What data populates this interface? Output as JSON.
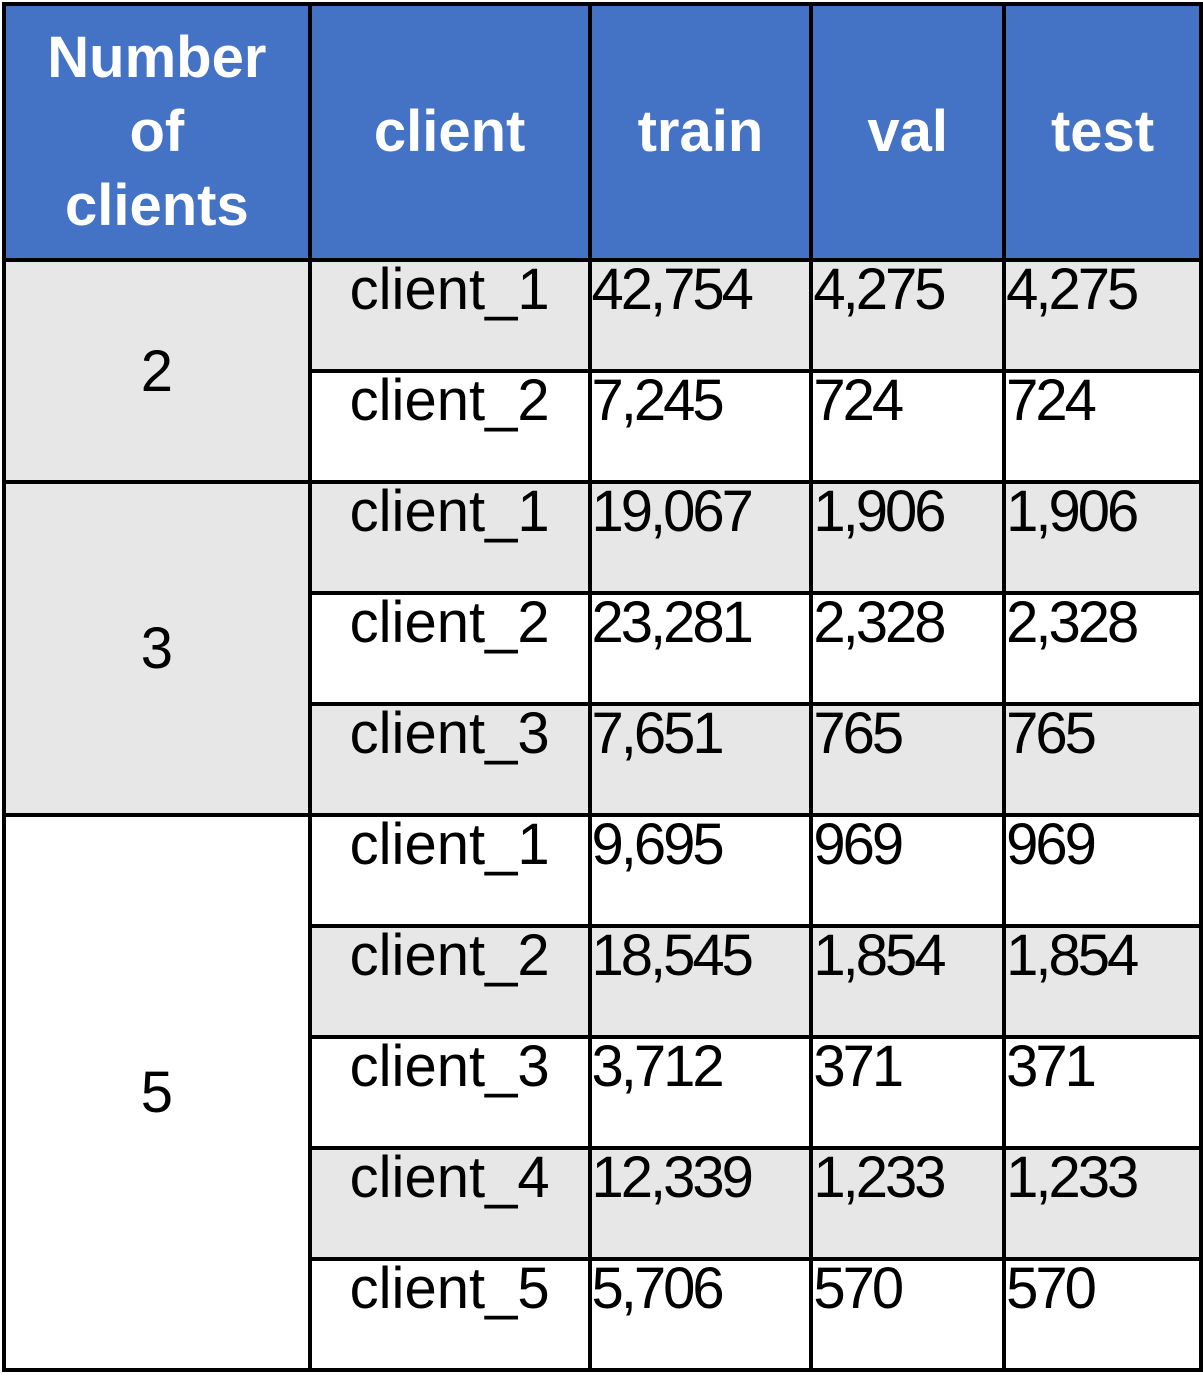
{
  "table": {
    "headers": [
      "Number\nof\nclients",
      "client",
      "train",
      "val",
      "test"
    ],
    "groups": [
      {
        "number": "2",
        "rows": [
          {
            "client": "client_1",
            "train": "42,754",
            "val": "4,275",
            "test": "4,275"
          },
          {
            "client": "client_2",
            "train": "7,245",
            "val": "724",
            "test": "724"
          }
        ]
      },
      {
        "number": "3",
        "rows": [
          {
            "client": "client_1",
            "train": "19,067",
            "val": "1,906",
            "test": "1,906"
          },
          {
            "client": "client_2",
            "train": "23,281",
            "val": "2,328",
            "test": "2,328"
          },
          {
            "client": "client_3",
            "train": "7,651",
            "val": "765",
            "test": "765"
          }
        ]
      },
      {
        "number": "5",
        "rows": [
          {
            "client": "client_1",
            "train": "9,695",
            "val": "969",
            "test": "969"
          },
          {
            "client": "client_2",
            "train": "18,545",
            "val": "1,854",
            "test": "1,854"
          },
          {
            "client": "client_3",
            "train": "3,712",
            "val": "371",
            "test": "371"
          },
          {
            "client": "client_4",
            "train": "12,339",
            "val": "1,233",
            "test": "1,233"
          },
          {
            "client": "client_5",
            "train": "5,706",
            "val": "570",
            "test": "570"
          }
        ]
      }
    ],
    "colors": {
      "header_bg": "#4472c4",
      "header_text": "#ffffff",
      "shaded_row": "#e7e7e7",
      "border": "#000000"
    }
  }
}
